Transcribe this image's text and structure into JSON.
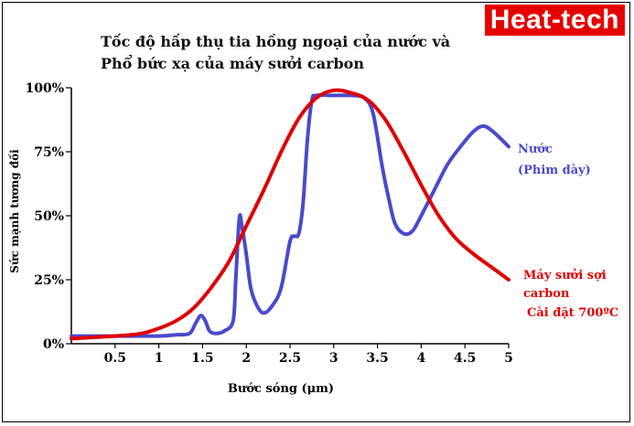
{
  "brand": {
    "text": "Heat-tech",
    "color": "#e60000"
  },
  "chart_data": {
    "type": "line",
    "title_lines": [
      "Tốc độ hấp thụ tia hồng ngoại của nước và",
      "Phổ bức xạ của máy sưởi carbon"
    ],
    "xlabel": "Bước sóng (μm)",
    "ylabel": "Sức mạnh tương đối",
    "xlim": [
      0,
      5
    ],
    "ylim": [
      0,
      100
    ],
    "xticks": [
      0.5,
      1,
      1.5,
      2,
      2.5,
      3,
      3.5,
      4,
      4.5,
      5
    ],
    "yticks": [
      {
        "value": 0,
        "label": "0%"
      },
      {
        "value": 25,
        "label": "25%"
      },
      {
        "value": 50,
        "label": "50%"
      },
      {
        "value": 75,
        "label": "75%"
      },
      {
        "value": 100,
        "label": "100%"
      }
    ],
    "grid": false,
    "series": [
      {
        "name": "Nước (Phim dày)",
        "label_lines": [
          "Nước",
          "(Phim dày)"
        ],
        "color": "#4a4acc",
        "points": [
          [
            0,
            3
          ],
          [
            0.5,
            3
          ],
          [
            1.0,
            3
          ],
          [
            1.2,
            3.5
          ],
          [
            1.35,
            4
          ],
          [
            1.42,
            8
          ],
          [
            1.48,
            11
          ],
          [
            1.53,
            9
          ],
          [
            1.58,
            5
          ],
          [
            1.65,
            4
          ],
          [
            1.75,
            5
          ],
          [
            1.85,
            9
          ],
          [
            1.88,
            25
          ],
          [
            1.92,
            49
          ],
          [
            1.95,
            46
          ],
          [
            2.0,
            35
          ],
          [
            2.05,
            22
          ],
          [
            2.12,
            15
          ],
          [
            2.2,
            12
          ],
          [
            2.3,
            15
          ],
          [
            2.4,
            22
          ],
          [
            2.5,
            40
          ],
          [
            2.55,
            42
          ],
          [
            2.6,
            43
          ],
          [
            2.65,
            55
          ],
          [
            2.7,
            80
          ],
          [
            2.75,
            95
          ],
          [
            2.8,
            97
          ],
          [
            3.0,
            97
          ],
          [
            3.2,
            97
          ],
          [
            3.35,
            96
          ],
          [
            3.45,
            90
          ],
          [
            3.55,
            70
          ],
          [
            3.62,
            58
          ],
          [
            3.7,
            47
          ],
          [
            3.8,
            43
          ],
          [
            3.9,
            44
          ],
          [
            4.0,
            50
          ],
          [
            4.15,
            60
          ],
          [
            4.3,
            70
          ],
          [
            4.45,
            77
          ],
          [
            4.6,
            83
          ],
          [
            4.72,
            85
          ],
          [
            4.85,
            82
          ],
          [
            5.0,
            77
          ]
        ]
      },
      {
        "name": "Máy sưởi sợi carbon",
        "label_lines": [
          "Máy sưởi sợi",
          "carbon",
          "Cài đặt 700ºC"
        ],
        "color": "#e00000",
        "points": [
          [
            0,
            2
          ],
          [
            0.5,
            3
          ],
          [
            0.8,
            4
          ],
          [
            1.0,
            6
          ],
          [
            1.2,
            9
          ],
          [
            1.4,
            14
          ],
          [
            1.6,
            22
          ],
          [
            1.8,
            32
          ],
          [
            2.0,
            46
          ],
          [
            2.2,
            60
          ],
          [
            2.4,
            75
          ],
          [
            2.6,
            88
          ],
          [
            2.8,
            96
          ],
          [
            3.0,
            99
          ],
          [
            3.2,
            98
          ],
          [
            3.4,
            95
          ],
          [
            3.6,
            87
          ],
          [
            3.8,
            75
          ],
          [
            4.0,
            62
          ],
          [
            4.2,
            50
          ],
          [
            4.4,
            41
          ],
          [
            4.6,
            35
          ],
          [
            4.8,
            30
          ],
          [
            5.0,
            25
          ]
        ]
      }
    ]
  }
}
